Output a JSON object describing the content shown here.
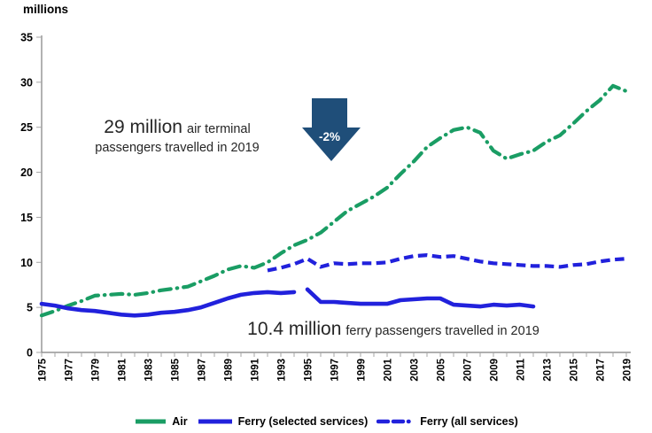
{
  "chart_data": {
    "type": "line",
    "ylabel": "millions",
    "ylim": [
      0,
      35
    ],
    "y_ticks": [
      0,
      5,
      10,
      15,
      20,
      25,
      30,
      35
    ],
    "x_range": [
      1975,
      2019
    ],
    "x_tick_labels": [
      "1975",
      "1977",
      "1979",
      "1981",
      "1983",
      "1985",
      "1987",
      "1989",
      "1991",
      "1993",
      "1995",
      "1997",
      "1999",
      "2001",
      "2003",
      "2005",
      "2007",
      "2009",
      "2011",
      "2013",
      "2015",
      "2017",
      "2019"
    ],
    "grid": false,
    "legend_position": "bottom",
    "series": [
      {
        "name": "Air",
        "style": "dash-dot",
        "color": "#1A9D64",
        "segments": [
          {
            "start_year": 1975,
            "values": [
              4.1,
              4.6,
              5.2,
              5.7,
              6.3,
              6.4,
              6.5,
              6.4,
              6.6,
              6.9,
              7.1,
              7.3,
              7.9,
              8.5,
              9.2,
              9.6,
              9.4,
              10.0,
              11.0,
              11.9,
              12.5,
              13.3,
              14.5,
              15.7,
              16.5,
              17.3,
              18.3,
              19.8,
              21.2,
              22.8,
              23.8,
              24.7,
              25.0,
              24.4,
              22.4,
              21.5,
              22.0,
              22.4,
              23.4,
              24.1,
              25.4,
              26.8,
              28.0,
              29.6,
              29.0
            ]
          }
        ]
      },
      {
        "name": "Ferry (selected services)",
        "style": "solid",
        "color": "#2121DC",
        "segments": [
          {
            "start_year": 1975,
            "values": [
              5.4,
              5.2,
              4.9,
              4.7,
              4.6,
              4.4,
              4.2,
              4.1,
              4.2,
              4.4,
              4.5,
              4.7,
              5.0,
              5.5,
              6.0,
              6.4,
              6.6,
              6.7,
              6.6,
              6.7
            ]
          },
          {
            "start_year": 1995,
            "values": [
              7.0,
              5.6,
              5.6,
              5.5,
              5.4,
              5.4,
              5.4,
              5.8,
              5.9,
              6.0,
              6.0,
              5.3,
              5.2,
              5.1,
              5.3,
              5.2,
              5.3,
              5.1
            ]
          }
        ]
      },
      {
        "name": "Ferry (all services)",
        "style": "dashed",
        "color": "#2121DC",
        "segments": [
          {
            "start_year": 1992,
            "values": [
              9.1,
              9.4,
              9.8,
              10.4,
              9.5,
              9.9,
              9.8,
              9.9,
              9.9,
              10.0,
              10.4,
              10.7,
              10.8,
              10.6,
              10.7,
              10.4,
              10.1,
              9.9,
              9.8,
              9.7,
              9.6,
              9.6,
              9.5,
              9.7,
              9.8,
              10.1,
              10.3,
              10.4
            ]
          }
        ]
      }
    ]
  },
  "annotations": {
    "air_highlight": "29 million",
    "air_rest": "air terminal",
    "air_line2": "passengers travelled in 2019",
    "ferry_highlight": "10.4 million",
    "ferry_rest": "ferry passengers travelled in 2019"
  },
  "decrease_arrow": {
    "label": "-2%",
    "color": "#1F4E79"
  }
}
